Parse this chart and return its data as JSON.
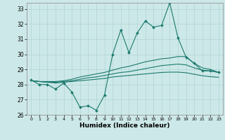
{
  "xlabel": "Humidex (Indice chaleur)",
  "xlim": [
    -0.5,
    23.5
  ],
  "ylim": [
    26,
    33.4
  ],
  "yticks": [
    26,
    27,
    28,
    29,
    30,
    31,
    32,
    33
  ],
  "xticks": [
    0,
    1,
    2,
    3,
    4,
    5,
    6,
    7,
    8,
    9,
    10,
    11,
    12,
    13,
    14,
    15,
    16,
    17,
    18,
    19,
    20,
    21,
    22,
    23
  ],
  "background_color": "#cde8e8",
  "grid_color": "#afd4d4",
  "line_color": "#1a7a6e",
  "line1_x": [
    0,
    1,
    2,
    3,
    4,
    5,
    6,
    7,
    8,
    9,
    10,
    11,
    12,
    13,
    14,
    15,
    16,
    17,
    18,
    19,
    20,
    21,
    22,
    23
  ],
  "line1_y": [
    28.3,
    28.0,
    28.0,
    27.7,
    28.1,
    27.5,
    26.5,
    26.6,
    26.3,
    27.3,
    30.0,
    31.6,
    30.1,
    31.4,
    32.2,
    31.8,
    31.9,
    33.4,
    31.1,
    29.8,
    29.4,
    28.9,
    28.9,
    28.8
  ],
  "line2_x": [
    0,
    1,
    2,
    3,
    4,
    5,
    6,
    7,
    8,
    9,
    10,
    11,
    12,
    13,
    14,
    15,
    16,
    17,
    18,
    19,
    20,
    21,
    22,
    23
  ],
  "line2_y": [
    28.25,
    28.2,
    28.2,
    28.2,
    28.25,
    28.35,
    28.5,
    28.6,
    28.7,
    28.8,
    28.95,
    29.1,
    29.2,
    29.35,
    29.5,
    29.6,
    29.7,
    29.75,
    29.85,
    29.85,
    29.4,
    29.1,
    29.0,
    28.8
  ],
  "line3_x": [
    0,
    1,
    2,
    3,
    4,
    5,
    6,
    7,
    8,
    9,
    10,
    11,
    12,
    13,
    14,
    15,
    16,
    17,
    18,
    19,
    20,
    21,
    22,
    23
  ],
  "line3_y": [
    28.25,
    28.2,
    28.15,
    28.15,
    28.2,
    28.25,
    28.35,
    28.45,
    28.5,
    28.6,
    28.7,
    28.8,
    28.85,
    28.95,
    29.05,
    29.15,
    29.25,
    29.3,
    29.35,
    29.3,
    29.1,
    28.95,
    28.9,
    28.8
  ],
  "line4_x": [
    0,
    1,
    2,
    3,
    4,
    5,
    6,
    7,
    8,
    9,
    10,
    11,
    12,
    13,
    14,
    15,
    16,
    17,
    18,
    19,
    20,
    21,
    22,
    23
  ],
  "line4_y": [
    28.25,
    28.2,
    28.15,
    28.1,
    28.15,
    28.2,
    28.25,
    28.3,
    28.35,
    28.4,
    28.5,
    28.55,
    28.6,
    28.65,
    28.7,
    28.75,
    28.8,
    28.82,
    28.82,
    28.78,
    28.68,
    28.58,
    28.52,
    28.48
  ]
}
